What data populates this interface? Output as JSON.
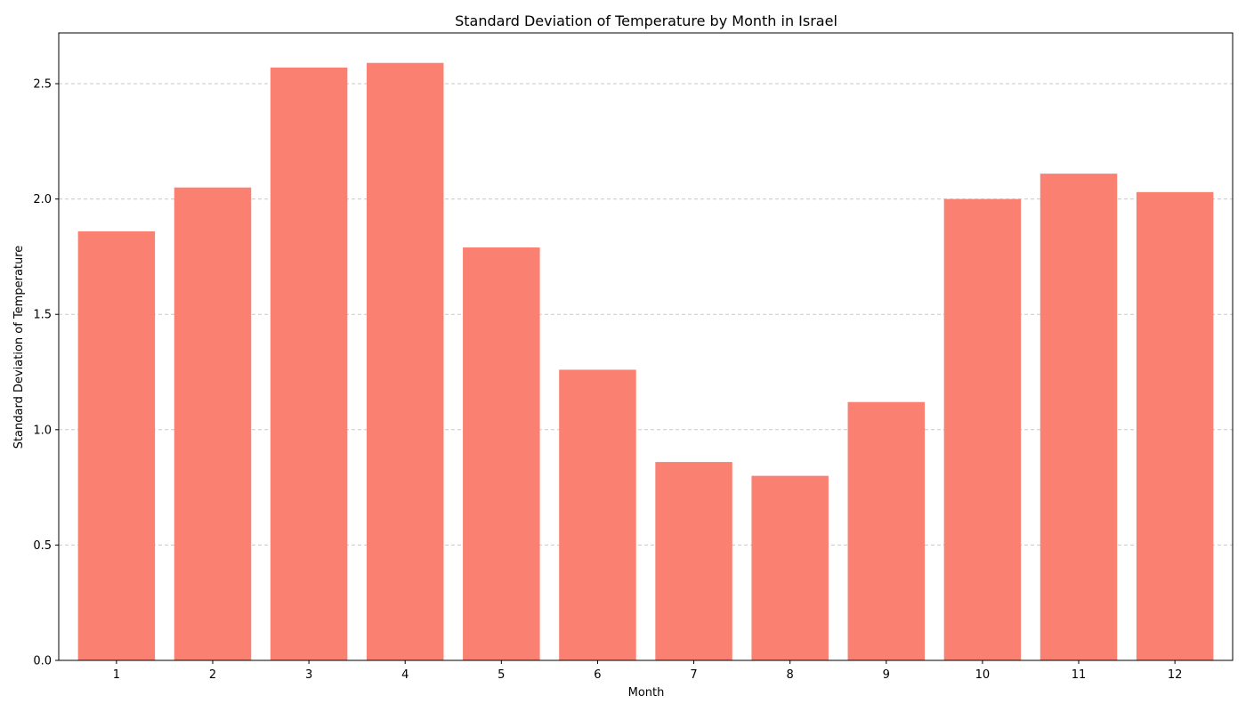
{
  "chart_data": {
    "type": "bar",
    "title": "Standard Deviation of Temperature by Month in Israel",
    "xlabel": "Month",
    "ylabel": "Standard Deviation of Temperature",
    "categories": [
      "1",
      "2",
      "3",
      "4",
      "5",
      "6",
      "7",
      "8",
      "9",
      "10",
      "11",
      "12"
    ],
    "values": [
      1.86,
      2.05,
      2.57,
      2.59,
      1.79,
      1.26,
      0.86,
      0.8,
      1.12,
      2.0,
      2.11,
      2.03
    ],
    "ylim": [
      0,
      2.72
    ],
    "yticks": [
      "0.0",
      "0.5",
      "1.0",
      "1.5",
      "2.0",
      "2.5"
    ],
    "ytick_values": [
      0,
      0.5,
      1.0,
      1.5,
      2.0,
      2.5
    ],
    "grid": "y-dashed",
    "colors": {
      "bar": "#fa8072",
      "grid": "#c8c8c8",
      "axis": "#000000"
    }
  }
}
